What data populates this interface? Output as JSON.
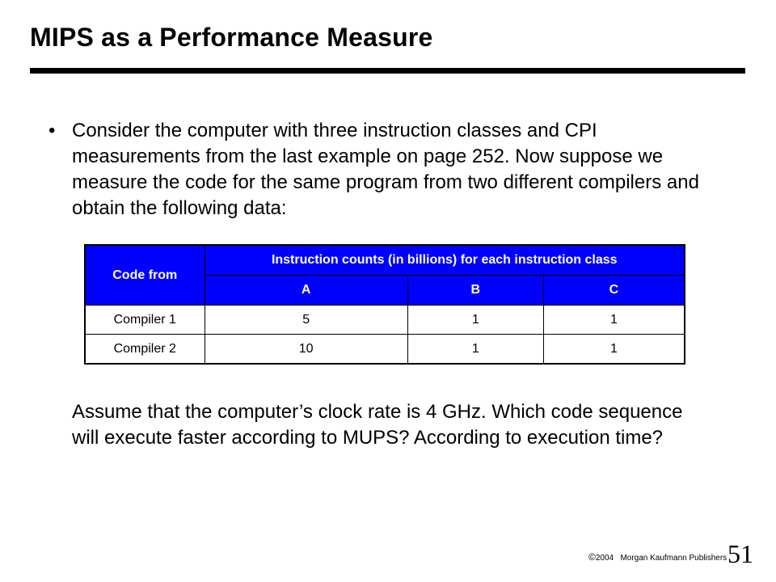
{
  "slide": {
    "title": "MIPS as a Performance Measure",
    "bullet_marker": "•",
    "paragraph1": "Consider the computer with three instruction classes and CPI measurements from the last example on page 252. Now suppose we measure the code for the same program from two different compilers and obtain the following data:",
    "paragraph2": "Assume that the computer’s clock rate is 4 GHz. Which code sequence will execute faster according to MUPS? According to execution time?",
    "header_color": "#0000ff"
  },
  "table": {
    "header_col1": "Code from",
    "header_group": "Instruction counts (in billions) for each instruction class",
    "classes": [
      "A",
      "B",
      "C"
    ],
    "rows": [
      {
        "label": "Compiler 1",
        "values": [
          "5",
          "1",
          "1"
        ]
      },
      {
        "label": "Compiler 2",
        "values": [
          "10",
          "1",
          "1"
        ]
      }
    ]
  },
  "footer": {
    "copyright_symbol": "©",
    "year": "2004",
    "publisher": "Morgan Kaufmann Publishers",
    "page_number": "51"
  }
}
